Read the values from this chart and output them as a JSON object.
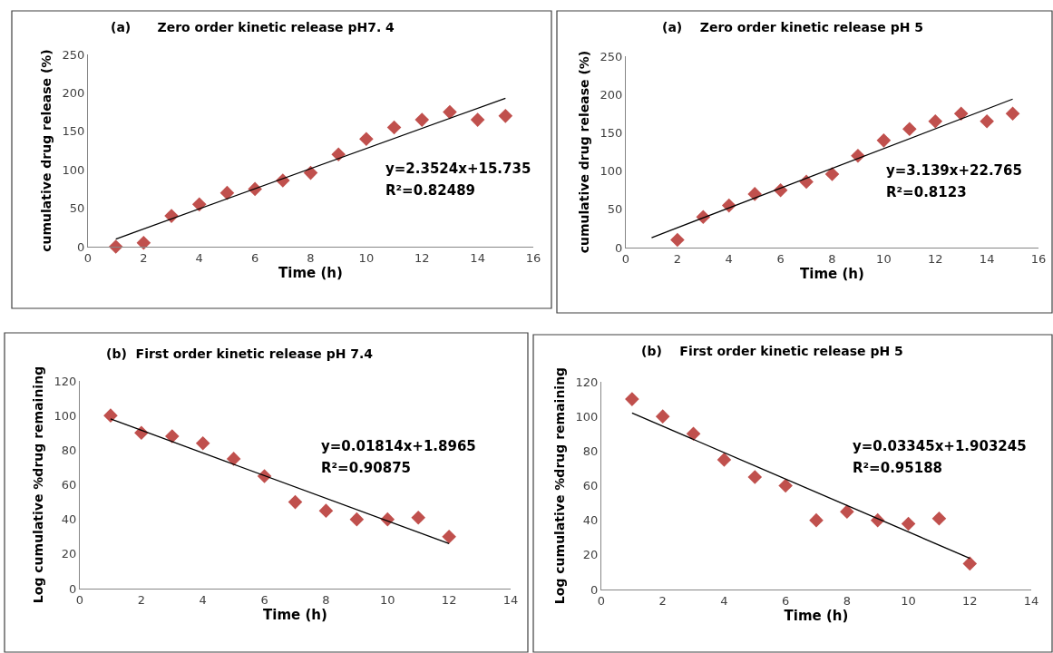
{
  "chart_data": [
    {
      "type": "scatter",
      "title": "(a)      Zero order kinetic release pH7. 4",
      "xlabel": "Time (h)",
      "ylabel": "cumulative drug release (%)",
      "marker": "diamond",
      "grid": false,
      "xlim": [
        0,
        16
      ],
      "xticks": [
        0,
        2,
        4,
        6,
        8,
        10,
        12,
        14,
        16
      ],
      "ylim": [
        0,
        250
      ],
      "yticks": [
        0,
        50,
        100,
        150,
        200,
        250
      ],
      "annotations": [
        "y=2.3524x+15.735",
        "R²=0.82489"
      ],
      "series": [
        {
          "color": "#c0504d",
          "x": [
            1,
            2,
            3,
            4,
            5,
            6,
            7,
            8,
            9,
            10,
            11,
            12,
            13,
            14,
            15
          ],
          "values": [
            0,
            5,
            40,
            55,
            70,
            75,
            86,
            96,
            120,
            140,
            155,
            165,
            175,
            165,
            170
          ]
        },
        {
          "type": "line",
          "color": "#000000",
          "x": [
            1,
            15
          ],
          "values": [
            10,
            193
          ],
          "marker": "none"
        }
      ]
    },
    {
      "type": "scatter",
      "title": "(a)    Zero order kinetic release pH 5",
      "xlabel": "Time (h)",
      "ylabel": "cumulative drug release (%)",
      "marker": "diamond",
      "grid": false,
      "xlim": [
        0,
        16
      ],
      "xticks": [
        0,
        2,
        4,
        6,
        8,
        10,
        12,
        14,
        16
      ],
      "ylim": [
        0,
        250
      ],
      "yticks": [
        0,
        50,
        100,
        150,
        200,
        250
      ],
      "annotations": [
        "y=3.139x+22.765",
        "R²=0.8123"
      ],
      "series": [
        {
          "color": "#c0504d",
          "x": [
            2,
            3,
            4,
            5,
            6,
            7,
            8,
            9,
            10,
            11,
            12,
            13,
            14,
            15
          ],
          "values": [
            10,
            40,
            55,
            70,
            75,
            86,
            96,
            120,
            140,
            155,
            165,
            175,
            165,
            175
          ]
        },
        {
          "type": "line",
          "color": "#000000",
          "x": [
            1,
            15
          ],
          "values": [
            13,
            194
          ],
          "marker": "none"
        }
      ]
    },
    {
      "type": "scatter",
      "title": "(b)  First order kinetic release pH 7.4",
      "xlabel": "Time (h)",
      "ylabel": "Log cumulative %drug remaining",
      "marker": "diamond",
      "grid": false,
      "xlim": [
        0,
        14
      ],
      "xticks": [
        0,
        2,
        4,
        6,
        8,
        10,
        12,
        14
      ],
      "ylim": [
        0,
        120
      ],
      "yticks": [
        0,
        20,
        40,
        60,
        80,
        100,
        120
      ],
      "annotations": [
        "y=0.01814x+1.8965",
        "R²=0.90875"
      ],
      "series": [
        {
          "color": "#c0504d",
          "x": [
            1,
            2,
            3,
            4,
            5,
            6,
            7,
            8,
            9,
            10,
            11,
            12
          ],
          "values": [
            100,
            90,
            88,
            84,
            75,
            65,
            50,
            45,
            40,
            40,
            41,
            30
          ]
        },
        {
          "type": "line",
          "color": "#000000",
          "x": [
            1,
            12
          ],
          "values": [
            98,
            26
          ],
          "marker": "none"
        }
      ]
    },
    {
      "type": "scatter",
      "title": "(b)    First order kinetic release pH 5",
      "xlabel": "Time (h)",
      "ylabel": "Log cumulative %drug remaining",
      "marker": "diamond",
      "grid": false,
      "xlim": [
        0,
        14
      ],
      "xticks": [
        0,
        2,
        4,
        6,
        8,
        10,
        12,
        14
      ],
      "ylim": [
        0,
        120
      ],
      "yticks": [
        0,
        20,
        40,
        60,
        80,
        100,
        120
      ],
      "annotations": [
        "y=0.03345x+1.903245",
        "R²=0.95188"
      ],
      "series": [
        {
          "color": "#c0504d",
          "x": [
            1,
            2,
            3,
            4,
            5,
            6,
            7,
            8,
            9,
            10,
            11,
            12
          ],
          "values": [
            110,
            100,
            90,
            75,
            65,
            60,
            40,
            45,
            40,
            38,
            41,
            15
          ]
        },
        {
          "type": "line",
          "color": "#000000",
          "x": [
            1,
            12
          ],
          "values": [
            102,
            18
          ],
          "marker": "none"
        }
      ]
    }
  ]
}
